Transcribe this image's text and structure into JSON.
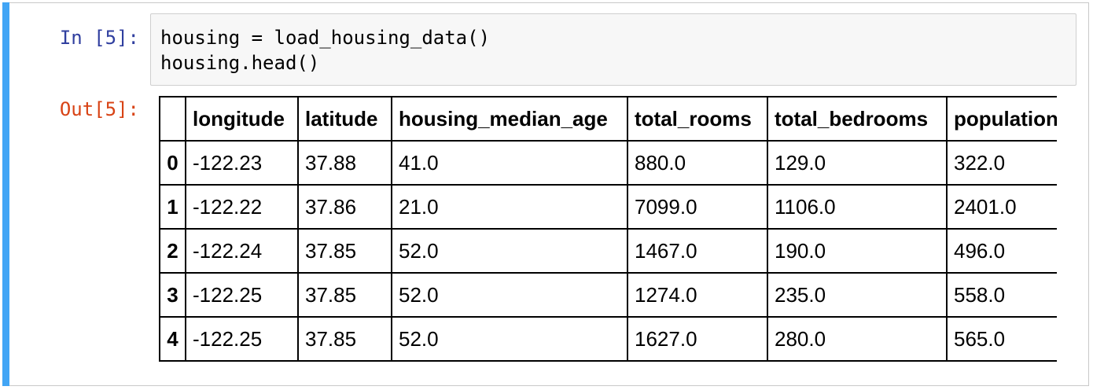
{
  "cell": {
    "in_prompt": "In [5]:",
    "out_prompt": "Out[5]:",
    "code_lines": [
      "housing = load_housing_data()",
      "housing.head()"
    ]
  },
  "table": {
    "columns": [
      "longitude",
      "latitude",
      "housing_median_age",
      "total_rooms",
      "total_bedrooms",
      "population"
    ],
    "rows": [
      {
        "index": "0",
        "cells": [
          "-122.23",
          "37.88",
          "41.0",
          "880.0",
          "129.0",
          "322.0"
        ]
      },
      {
        "index": "1",
        "cells": [
          "-122.22",
          "37.86",
          "21.0",
          "7099.0",
          "1106.0",
          "2401.0"
        ]
      },
      {
        "index": "2",
        "cells": [
          "-122.24",
          "37.85",
          "52.0",
          "1467.0",
          "190.0",
          "496.0"
        ]
      },
      {
        "index": "3",
        "cells": [
          "-122.25",
          "37.85",
          "52.0",
          "1274.0",
          "235.0",
          "558.0"
        ]
      },
      {
        "index": "4",
        "cells": [
          "-122.25",
          "37.85",
          "52.0",
          "1627.0",
          "280.0",
          "565.0"
        ]
      }
    ]
  },
  "colors": {
    "selection_bar": "#42a5f5",
    "in_prompt": "#303f9f",
    "out_prompt": "#d84315",
    "input_background": "#f7f7f7"
  }
}
